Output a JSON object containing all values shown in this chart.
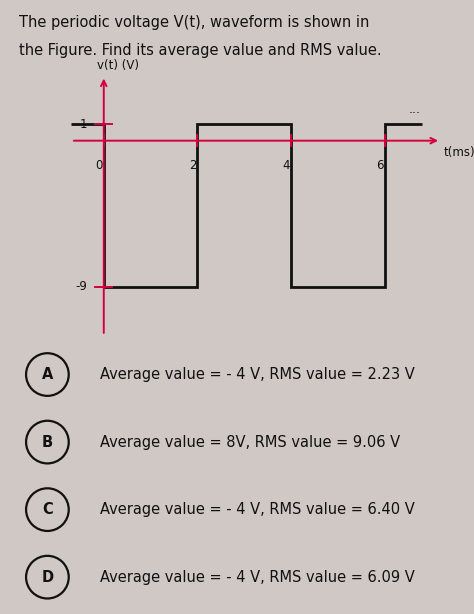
{
  "title_line1": "The periodic voltage V(t), waveform is shown in",
  "title_line2": "the Figure. Find its average value and RMS value.",
  "bg_color": "#cfc8c4",
  "waveform_color": "#111111",
  "axis_color": "#d4003c",
  "ylabel": "v(t) (V)",
  "xlabel": "t(ms)",
  "dots": "...",
  "ytick_labels": [
    "1",
    "-9"
  ],
  "ytick_vals": [
    1,
    -9
  ],
  "xtick_labels": [
    "0",
    "2",
    "4",
    "6"
  ],
  "xtick_vals": [
    0,
    2,
    4,
    6
  ],
  "wave_x": [
    -0.7,
    0,
    0,
    2,
    2,
    4,
    4,
    6,
    6,
    6.8
  ],
  "wave_y": [
    1,
    1,
    -9,
    -9,
    1,
    1,
    -9,
    -9,
    1,
    1
  ],
  "xlim": [
    -0.9,
    7.4
  ],
  "ylim": [
    -12.5,
    4.5
  ],
  "choices": [
    {
      "label": "A",
      "text": "Average value = - 4 V, RMS value = 2.23 V"
    },
    {
      "label": "B",
      "text": "Average value = 8V, RMS value = 9.06 V"
    },
    {
      "label": "C",
      "text": "Average value = - 4 V, RMS value = 6.40 V"
    },
    {
      "label": "D",
      "text": "Average value = - 4 V, RMS value = 6.09 V"
    }
  ],
  "text_color": "#111111",
  "title_fontsize": 10.5,
  "choice_fontsize": 10.5,
  "wave_linewidth": 2.0,
  "axis_linewidth": 1.4
}
